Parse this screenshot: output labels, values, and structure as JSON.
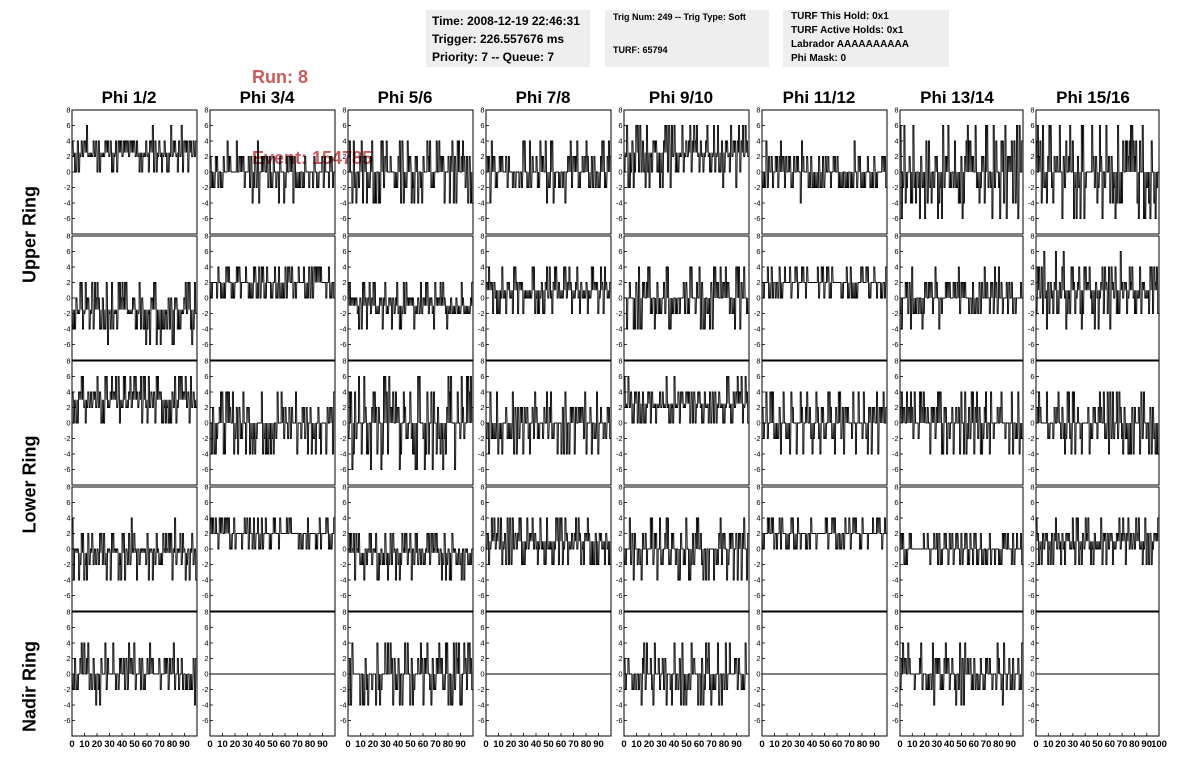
{
  "header": {
    "run_label": "Run:",
    "run_value": "8",
    "event_label": "Event:",
    "event_value": "154785",
    "time_box": [
      "Time: 2008-12-19 22:46:31",
      "Trigger: 226.557676 ms",
      "Priority: 7 -- Queue: 7"
    ],
    "trig_box": [
      "Trig Num: 249 -- Trig Type: Soft",
      "",
      "TURF: 65794"
    ],
    "turf_box": [
      "TURF This Hold: 0x1",
      "TURF Active Holds: 0x1",
      "Labrador AAAAAAAAAA",
      "Phi Mask: 0"
    ]
  },
  "phi_labels": [
    "Phi 1/2",
    "Phi 3/4",
    "Phi 5/6",
    "Phi 7/8",
    "Phi 9/10",
    "Phi 11/12",
    "Phi 13/14",
    "Phi 15/16"
  ],
  "ring_labels": [
    "Upper Ring",
    "Lower Ring",
    "Nadir Ring"
  ],
  "chart_data": {
    "type": "line",
    "description_rows": [
      "Upper Ring (row 1)",
      "Upper Ring (row 2)",
      "Lower Ring (row 1)",
      "Lower Ring (row 2)",
      "Nadir Ring"
    ],
    "xlim": [
      0,
      100
    ],
    "ylim": [
      -8,
      8
    ],
    "y_ticks": [
      -6,
      -4,
      -2,
      0,
      2,
      4,
      6,
      8
    ],
    "x_ticks": [
      0,
      10,
      20,
      30,
      40,
      50,
      60,
      70,
      80,
      90,
      100
    ],
    "x_tick_labels": [
      "0",
      "10",
      "20",
      "30",
      "40",
      "50",
      "60",
      "70",
      "80",
      "90",
      "100"
    ],
    "samples_per_trace": 95,
    "panels": [
      [
        {
          "center": 2.5,
          "spread": 3.0,
          "seed": 11
        },
        {
          "center": 0.0,
          "spread": 3.5,
          "seed": 12
        },
        {
          "center": 0.0,
          "spread": 5.0,
          "seed": 13
        },
        {
          "center": 0.0,
          "spread": 3.5,
          "seed": 14
        },
        {
          "center": 2.5,
          "spread": 4.0,
          "seed": 15
        },
        {
          "center": 0.0,
          "spread": 3.5,
          "seed": 16
        },
        {
          "center": 0.0,
          "spread": 6.5,
          "seed": 17
        },
        {
          "center": 0.0,
          "spread": 7.0,
          "seed": 18
        }
      ],
      [
        {
          "center": -1.5,
          "spread": 4.0,
          "seed": 21
        },
        {
          "center": 2.0,
          "spread": 2.5,
          "seed": 22
        },
        {
          "center": -1.0,
          "spread": 3.0,
          "seed": 23
        },
        {
          "center": 1.0,
          "spread": 3.5,
          "seed": 24
        },
        {
          "center": 0.0,
          "spread": 4.5,
          "seed": 25
        },
        {
          "center": 2.0,
          "spread": 2.5,
          "seed": 26
        },
        {
          "center": 0.0,
          "spread": 3.5,
          "seed": 27
        },
        {
          "center": 1.0,
          "spread": 4.5,
          "seed": 28
        }
      ],
      [
        {
          "center": 3.0,
          "spread": 3.5,
          "seed": 31
        },
        {
          "center": 0.0,
          "spread": 5.0,
          "seed": 32
        },
        {
          "center": 0.0,
          "spread": 6.5,
          "seed": 33
        },
        {
          "center": 0.0,
          "spread": 4.0,
          "seed": 34
        },
        {
          "center": 2.5,
          "spread": 3.0,
          "seed": 35
        },
        {
          "center": 0.0,
          "spread": 4.5,
          "seed": 36
        },
        {
          "center": 0.0,
          "spread": 4.5,
          "seed": 37
        },
        {
          "center": 0.0,
          "spread": 4.5,
          "seed": 38
        }
      ],
      [
        {
          "center": -0.5,
          "spread": 4.0,
          "seed": 41
        },
        {
          "center": 2.0,
          "spread": 2.5,
          "seed": 42
        },
        {
          "center": -0.5,
          "spread": 3.5,
          "seed": 43
        },
        {
          "center": 1.0,
          "spread": 4.0,
          "seed": 44
        },
        {
          "center": 0.0,
          "spread": 4.0,
          "seed": 45
        },
        {
          "center": 2.0,
          "spread": 2.5,
          "seed": 46
        },
        {
          "center": 0.0,
          "spread": 3.0,
          "seed": 47
        },
        {
          "center": 1.0,
          "spread": 3.5,
          "seed": 48
        }
      ],
      [
        {
          "center": 0.0,
          "spread": 3.5,
          "seed": 51
        },
        {
          "center": 0.0,
          "spread": 0.0,
          "seed": 52,
          "flat": true
        },
        {
          "center": 0.0,
          "spread": 4.5,
          "seed": 53
        },
        {
          "center": 0.0,
          "spread": 0.0,
          "seed": 54,
          "flat": true
        },
        {
          "center": 0.0,
          "spread": 4.0,
          "seed": 55
        },
        {
          "center": 0.0,
          "spread": 0.0,
          "seed": 56,
          "flat": true
        },
        {
          "center": 0.0,
          "spread": 3.5,
          "seed": 57
        },
        {
          "center": 0.0,
          "spread": 0.0,
          "seed": 58,
          "flat": true
        }
      ]
    ],
    "grid": false,
    "legend": "none"
  }
}
